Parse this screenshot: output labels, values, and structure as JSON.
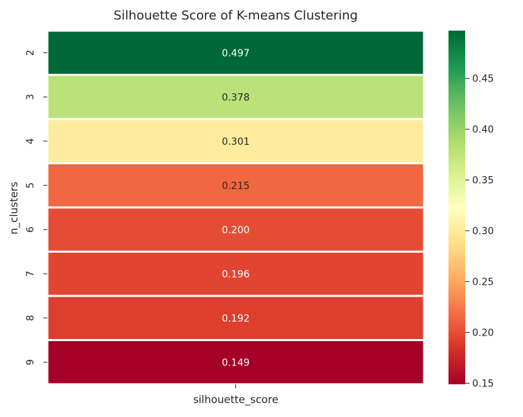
{
  "chart_data": {
    "type": "heatmap",
    "title": "Silhouette Score of K-means Clustering",
    "xlabel": "silhouette_score",
    "ylabel": "n_clusters",
    "x_categories": [
      "silhouette_score"
    ],
    "y_categories": [
      "2",
      "3",
      "4",
      "5",
      "6",
      "7",
      "8",
      "9"
    ],
    "values": [
      0.497,
      0.378,
      0.301,
      0.215,
      0.2,
      0.196,
      0.192,
      0.149
    ],
    "annotations": [
      "0.497",
      "0.378",
      "0.301",
      "0.215",
      "0.200",
      "0.196",
      "0.192",
      "0.149"
    ],
    "colormap": "RdYlGn",
    "colorbar": {
      "min": 0.149,
      "max": 0.497,
      "ticks": [
        0.15,
        0.2,
        0.25,
        0.3,
        0.35,
        0.4,
        0.45
      ],
      "tick_labels": [
        "0.15",
        "0.20",
        "0.25",
        "0.30",
        "0.35",
        "0.40",
        "0.45"
      ]
    },
    "cell_separator_color": "#ffffff"
  }
}
